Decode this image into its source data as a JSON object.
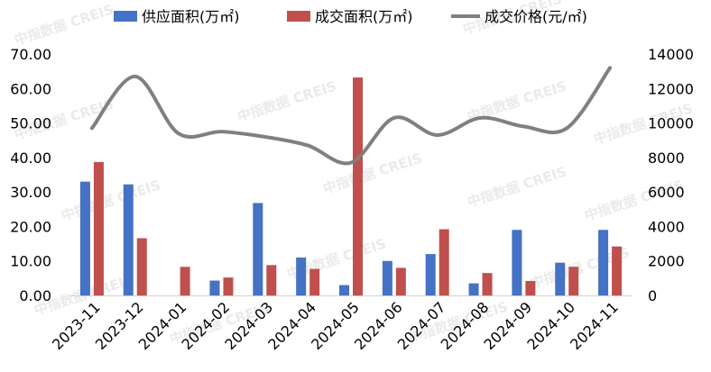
{
  "watermark": "中指数据 CREIS",
  "chart_data": {
    "type": "bar",
    "categories": [
      "2023-11",
      "2023-12",
      "2024-01",
      "2024-02",
      "2024-03",
      "2024-04",
      "2024-05",
      "2024-06",
      "2024-07",
      "2024-08",
      "2024-09",
      "2024-10",
      "2024-11"
    ],
    "series": [
      {
        "name": "供应面积(万㎡)",
        "kind": "bar",
        "axis": "left",
        "color": "#4472C4",
        "values": [
          33.0,
          32.2,
          0,
          4.3,
          26.8,
          11.0,
          3.0,
          10.0,
          12.0,
          3.5,
          19.0,
          9.5,
          19.0
        ]
      },
      {
        "name": "成交面积(万㎡)",
        "kind": "bar",
        "axis": "left",
        "color": "#C0504D",
        "values": [
          38.7,
          16.6,
          8.3,
          5.2,
          8.8,
          7.7,
          63.2,
          8.0,
          19.2,
          6.5,
          4.2,
          8.3,
          14.2
        ]
      },
      {
        "name": "成交价格(元/㎡)",
        "kind": "line",
        "axis": "right",
        "color": "#808080",
        "values": [
          9700,
          12700,
          9400,
          9500,
          9200,
          8700,
          7700,
          10300,
          9300,
          10300,
          9800,
          9700,
          13200
        ]
      }
    ],
    "y_left": {
      "min": 0,
      "max": 70,
      "step": 10,
      "decimals": 2
    },
    "y_right": {
      "min": 0,
      "max": 14000,
      "step": 2000
    },
    "legend": "top",
    "grid": false
  }
}
